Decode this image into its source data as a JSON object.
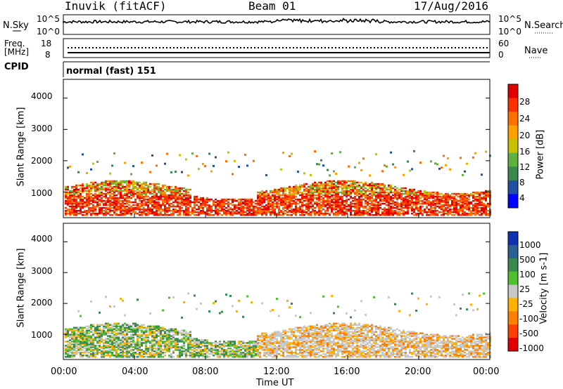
{
  "header": {
    "station": "Inuvik (fitACF)",
    "beam": "Beam 01",
    "date": "17/Aug/2016"
  },
  "top_panels": {
    "nsky_label": "N.Sky",
    "nsky_ticks": [
      "10^5",
      "10^0"
    ],
    "nsearch_label": "N.Search",
    "nsearch_ticks": [
      "10^5",
      "10^0"
    ],
    "freq_label_1": "Freq.",
    "freq_label_2": "[MHz]",
    "freq_ticks": [
      "18",
      "8"
    ],
    "nave_label": "Nave",
    "nave_ticks": [
      "60",
      "0"
    ],
    "cpid_label": "CPID",
    "cpid_value": "normal (fast) 151"
  },
  "chart_data": [
    {
      "type": "heatmap",
      "quantity": "Power",
      "ylabel": "Slant Range [km]",
      "colorbar_label": "Power [dB]",
      "colorbar_ticks": [
        "28",
        "24",
        "20",
        "16",
        "12",
        "8",
        "4"
      ],
      "colorbar_colors": [
        "#e00000",
        "#ff3000",
        "#ff7000",
        "#ffa000",
        "#c8c000",
        "#60b040",
        "#3a8a50",
        "#2050a0",
        "#0000ff"
      ],
      "ylim": [
        180,
        4600
      ],
      "yticks": [
        "4000",
        "3000",
        "2000",
        "1000"
      ],
      "xticks": [
        "00:00",
        "04:00",
        "08:00",
        "12:00",
        "16:00",
        "20:00",
        "00:00"
      ]
    },
    {
      "type": "heatmap",
      "quantity": "Velocity",
      "ylabel": "Slant Range [km]",
      "colorbar_label": "Velocity [m s-1]",
      "colorbar_ticks": [
        "1000",
        "500",
        "100",
        "25",
        "-25",
        "-100",
        "-500",
        "-1000"
      ],
      "colorbar_colors": [
        "#1030b0",
        "#2a6090",
        "#3a8a50",
        "#50c030",
        "#c8c8c8",
        "#ffb000",
        "#ff8000",
        "#ff4000",
        "#e00000"
      ],
      "ylim": [
        180,
        4600
      ],
      "yticks": [
        "4000",
        "3000",
        "2000",
        "1000"
      ],
      "xticks": [
        "00:00",
        "04:00",
        "08:00",
        "12:00",
        "16:00",
        "20:00",
        "00:00"
      ],
      "xlabel": "Time UT"
    }
  ]
}
